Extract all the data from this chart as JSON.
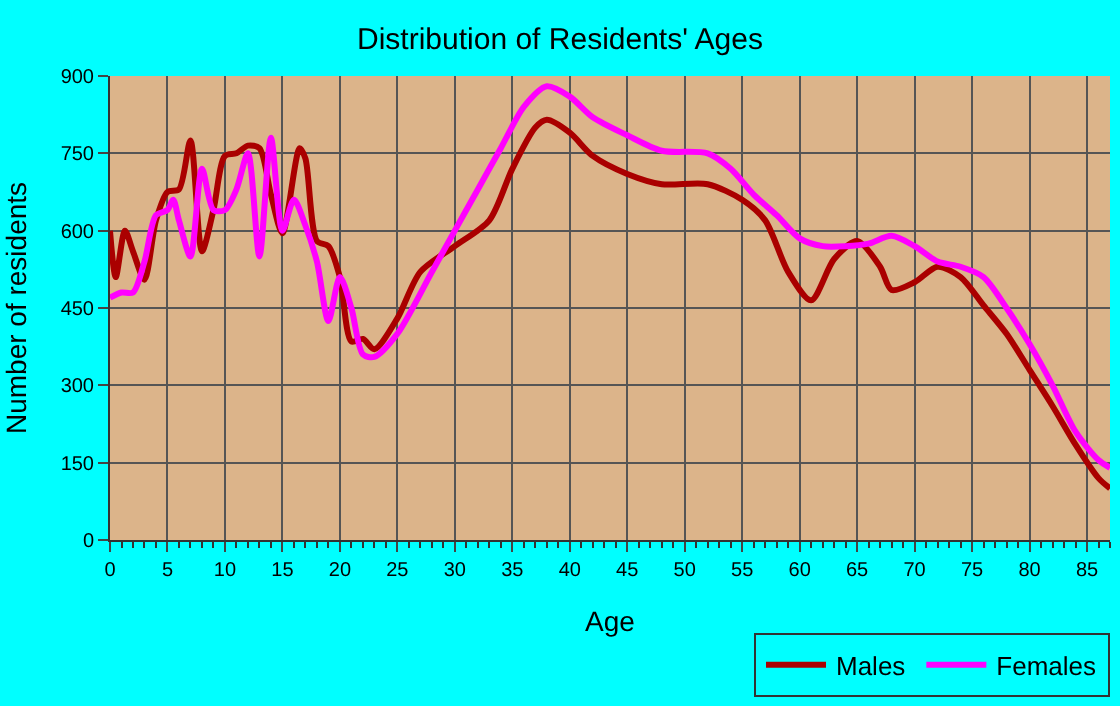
{
  "chart_data": {
    "type": "line",
    "title": "Distribution of Residents' Ages",
    "xlabel": "Age",
    "ylabel": "Number of residents",
    "xlim": [
      0,
      87
    ],
    "xticks": [
      0,
      5,
      10,
      15,
      20,
      25,
      30,
      35,
      40,
      45,
      50,
      55,
      60,
      65,
      70,
      75,
      80,
      85
    ],
    "ylim": [
      0,
      900
    ],
    "yticks": [
      0,
      150,
      300,
      450,
      600,
      750,
      900
    ],
    "grid": true,
    "legend": "bottom right",
    "marker": "none",
    "line_style": "solid",
    "series": [
      {
        "name": "Males",
        "color": "#aa0000",
        "x": [
          0,
          0.5,
          1.3,
          2,
          3,
          4,
          5,
          6,
          7,
          8,
          9,
          10,
          11,
          12,
          13,
          14,
          15,
          16.5,
          17,
          18,
          19,
          20,
          21,
          22,
          23,
          25,
          27,
          30,
          33,
          35,
          37,
          38,
          40,
          42,
          45,
          48,
          52,
          55,
          57,
          59,
          61,
          63,
          65,
          67,
          68,
          70,
          72,
          74,
          76,
          78,
          80,
          82,
          84,
          86,
          87
        ],
        "values": [
          600,
          510,
          600,
          560,
          505,
          620,
          675,
          680,
          775,
          560,
          640,
          745,
          750,
          765,
          760,
          670,
          595,
          760,
          740,
          580,
          570,
          510,
          385,
          390,
          370,
          430,
          520,
          570,
          620,
          720,
          800,
          815,
          790,
          745,
          710,
          690,
          690,
          660,
          620,
          520,
          465,
          545,
          580,
          530,
          485,
          500,
          530,
          510,
          455,
          400,
          330,
          260,
          185,
          120,
          100
        ]
      },
      {
        "name": "Females",
        "color": "#ff00ff",
        "x": [
          0,
          1,
          2,
          3,
          4,
          5,
          5.5,
          6,
          7,
          8,
          9,
          10,
          11,
          12,
          13,
          14,
          15,
          16,
          17,
          18,
          19,
          20,
          21,
          22,
          23,
          25,
          28,
          30,
          32,
          34,
          36,
          38,
          40,
          42,
          45,
          48,
          52,
          54,
          56,
          58,
          60,
          62,
          64,
          66,
          68,
          70,
          72,
          74,
          76,
          78,
          80,
          82,
          84,
          86,
          87
        ],
        "values": [
          470,
          480,
          480,
          540,
          630,
          640,
          660,
          620,
          550,
          720,
          640,
          640,
          680,
          750,
          550,
          780,
          600,
          660,
          610,
          540,
          425,
          510,
          450,
          360,
          355,
          400,
          520,
          600,
          680,
          760,
          840,
          880,
          860,
          820,
          785,
          755,
          750,
          720,
          670,
          630,
          585,
          570,
          570,
          575,
          590,
          570,
          540,
          530,
          510,
          450,
          380,
          300,
          210,
          155,
          140
        ]
      }
    ]
  }
}
